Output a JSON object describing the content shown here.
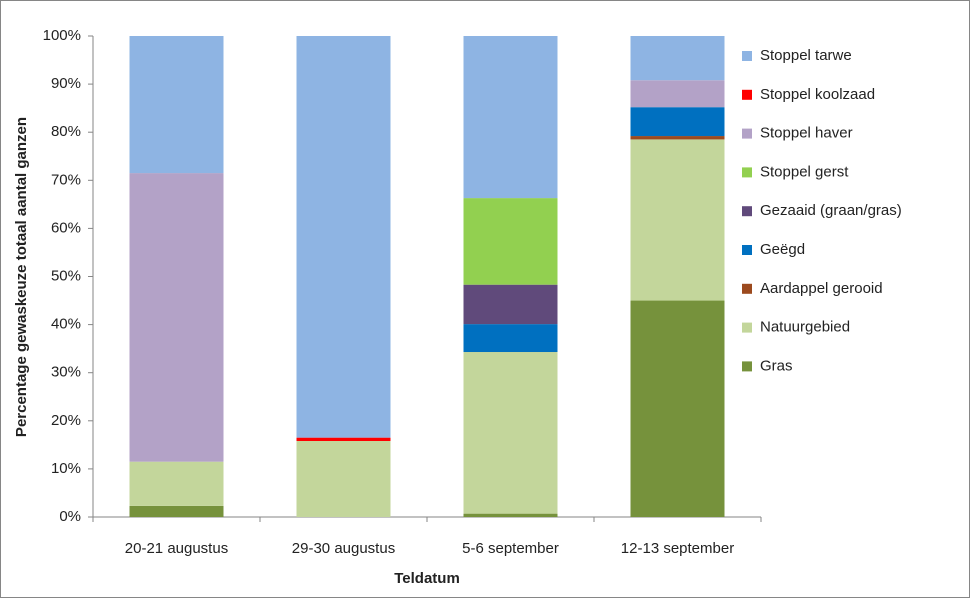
{
  "chart_data": {
    "type": "stacked-bar",
    "x_label": "Teldatum",
    "y_label": "Percentage gewaskeuze totaal aantal ganzen",
    "categories": [
      "20-21 augustus",
      "29-30 augustus",
      "5-6 september",
      "12-13 september"
    ],
    "series": [
      {
        "name": "Gras",
        "color": "#76923c",
        "values": [
          2.3,
          null,
          0.7,
          45
        ]
      },
      {
        "name": "Natuurgebied",
        "color": "#c3d69b",
        "values": [
          9.2,
          15.8,
          33.6,
          33.5
        ]
      },
      {
        "name": "Aardappel gerooid",
        "color": "#9c4a1e",
        "values": [
          null,
          null,
          null,
          0.7
        ]
      },
      {
        "name": "Geëgd",
        "color": "#0070c0",
        "values": [
          null,
          null,
          5.8,
          6
        ]
      },
      {
        "name": "Gezaaid (graan/gras)",
        "color": "#604a7b",
        "values": [
          null,
          null,
          8.2,
          null
        ]
      },
      {
        "name": "Stoppel gerst",
        "color": "#92d050",
        "values": [
          null,
          null,
          18,
          null
        ]
      },
      {
        "name": "Stoppel haver",
        "color": "#b3a2c7",
        "values": [
          60,
          null,
          null,
          5.6
        ]
      },
      {
        "name": "Stoppel koolzaad",
        "color": "#ff0000",
        "values": [
          null,
          0.7,
          null,
          null
        ]
      },
      {
        "name": "Stoppel tarwe",
        "color": "#8eb4e3",
        "values": [
          28.5,
          83.5,
          33.7,
          9.2
        ]
      }
    ],
    "ylim": [
      0,
      100
    ],
    "yticks": [
      {
        "value": 0,
        "label": "0%"
      },
      {
        "value": 10,
        "label": "10%"
      },
      {
        "value": 20,
        "label": "20%"
      },
      {
        "value": 30,
        "label": "30%"
      },
      {
        "value": 40,
        "label": "40%"
      },
      {
        "value": 50,
        "label": "50%"
      },
      {
        "value": 60,
        "label": "60%"
      },
      {
        "value": 70,
        "label": "70%"
      },
      {
        "value": 80,
        "label": "80%"
      },
      {
        "value": 90,
        "label": "90%"
      },
      {
        "value": 100,
        "label": "100%"
      }
    ],
    "legend": "right"
  }
}
